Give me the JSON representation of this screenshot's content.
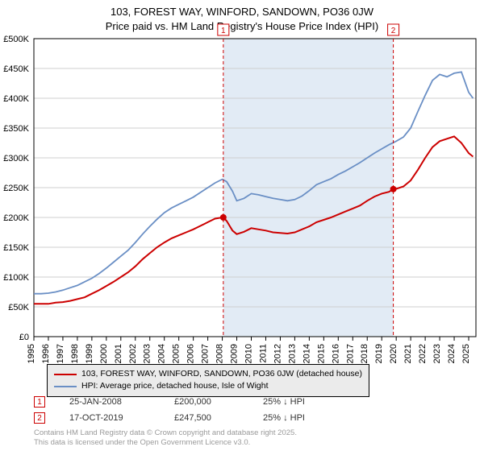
{
  "title_line1": "103, FOREST WAY, WINFORD, SANDOWN, PO36 0JW",
  "title_line2": "Price paid vs. HM Land Registry's House Price Index (HPI)",
  "chart": {
    "type": "line",
    "background_color": "#ffffff",
    "plot_border_color": "#000000",
    "grid_color": "#cfcfcf",
    "shade_color": "#e2ebf5",
    "shade_xstart": 2008.07,
    "shade_xend": 2019.8,
    "xlim": [
      1995,
      2025.5
    ],
    "ylim": [
      0,
      500
    ],
    "yticks": [
      0,
      50,
      100,
      150,
      200,
      250,
      300,
      350,
      400,
      450,
      500
    ],
    "ytick_labels": [
      "£0",
      "£50K",
      "£100K",
      "£150K",
      "£200K",
      "£250K",
      "£300K",
      "£350K",
      "£400K",
      "£450K",
      "£500K"
    ],
    "xticks": [
      1995,
      1996,
      1997,
      1998,
      1999,
      2000,
      2001,
      2002,
      2003,
      2004,
      2005,
      2006,
      2007,
      2008,
      2009,
      2010,
      2011,
      2012,
      2013,
      2014,
      2015,
      2016,
      2017,
      2018,
      2019,
      2020,
      2021,
      2022,
      2023,
      2024,
      2025
    ],
    "label_fontsize": 11,
    "axis_color": "#000000",
    "series": [
      {
        "name": "subject",
        "color": "#cc0000",
        "line_width": 2,
        "x": [
          1995,
          1995.5,
          1996,
          1996.5,
          1997,
          1997.5,
          1998,
          1998.5,
          1999,
          1999.5,
          2000,
          2000.5,
          2001,
          2001.5,
          2002,
          2002.5,
          2003,
          2003.5,
          2004,
          2004.5,
          2005,
          2005.5,
          2006,
          2006.5,
          2007,
          2007.5,
          2008,
          2008.07,
          2008.3,
          2008.7,
          2009,
          2009.5,
          2010,
          2010.5,
          2011,
          2011.5,
          2012,
          2012.5,
          2013,
          2013.5,
          2014,
          2014.5,
          2015,
          2015.5,
          2016,
          2016.5,
          2017,
          2017.5,
          2018,
          2018.5,
          2019,
          2019.5,
          2019.8,
          2020,
          2020.5,
          2021,
          2021.5,
          2022,
          2022.5,
          2023,
          2023.5,
          2024,
          2024.5,
          2025,
          2025.3
        ],
        "y": [
          55,
          55,
          55,
          57,
          58,
          60,
          63,
          66,
          72,
          78,
          85,
          92,
          100,
          108,
          118,
          130,
          140,
          150,
          158,
          165,
          170,
          175,
          180,
          186,
          192,
          198,
          200,
          200,
          194,
          178,
          172,
          176,
          182,
          180,
          178,
          175,
          174,
          173,
          175,
          180,
          185,
          192,
          196,
          200,
          205,
          210,
          215,
          220,
          228,
          235,
          240,
          243,
          247.5,
          248,
          252,
          262,
          280,
          300,
          318,
          328,
          332,
          336,
          325,
          308,
          302
        ]
      },
      {
        "name": "hpi",
        "color": "#6a8fc5",
        "line_width": 1.8,
        "x": [
          1995,
          1995.5,
          1996,
          1996.5,
          1997,
          1997.5,
          1998,
          1998.5,
          1999,
          1999.5,
          2000,
          2000.5,
          2001,
          2001.5,
          2002,
          2002.5,
          2003,
          2003.5,
          2004,
          2004.5,
          2005,
          2005.5,
          2006,
          2006.5,
          2007,
          2007.5,
          2008,
          2008.3,
          2008.7,
          2009,
          2009.5,
          2010,
          2010.5,
          2011,
          2011.5,
          2012,
          2012.5,
          2013,
          2013.5,
          2014,
          2014.5,
          2015,
          2015.5,
          2016,
          2016.5,
          2017,
          2017.5,
          2018,
          2018.5,
          2019,
          2019.5,
          2020,
          2020.5,
          2021,
          2021.5,
          2022,
          2022.5,
          2023,
          2023.5,
          2024,
          2024.5,
          2025,
          2025.3
        ],
        "y": [
          72,
          72,
          73,
          75,
          78,
          82,
          86,
          92,
          98,
          106,
          115,
          125,
          135,
          145,
          158,
          172,
          185,
          197,
          208,
          216,
          222,
          228,
          234,
          242,
          250,
          258,
          264,
          260,
          244,
          228,
          232,
          240,
          238,
          235,
          232,
          230,
          228,
          230,
          236,
          245,
          255,
          260,
          265,
          272,
          278,
          285,
          292,
          300,
          308,
          315,
          322,
          328,
          335,
          350,
          378,
          405,
          430,
          440,
          436,
          442,
          444,
          410,
          400
        ]
      }
    ],
    "sale_markers": [
      {
        "label": "1",
        "x": 2008.07,
        "y": 200
      },
      {
        "label": "2",
        "x": 2019.8,
        "y": 247.5
      }
    ],
    "marker_line_color": "#cc0000",
    "marker_dot_color": "#cc0000",
    "marker_dot_radius": 4
  },
  "legend": {
    "items": [
      {
        "color": "#cc0000",
        "label": "103, FOREST WAY, WINFORD, SANDOWN, PO36 0JW (detached house)"
      },
      {
        "color": "#6a8fc5",
        "label": "HPI: Average price, detached house, Isle of Wight"
      }
    ]
  },
  "sales": [
    {
      "badge": "1",
      "date": "25-JAN-2008",
      "price": "£200,000",
      "diff": "25% ↓ HPI"
    },
    {
      "badge": "2",
      "date": "17-OCT-2019",
      "price": "£247,500",
      "diff": "25% ↓ HPI"
    }
  ],
  "footer_line1": "Contains HM Land Registry data © Crown copyright and database right 2025.",
  "footer_line2": "This data is licensed under the Open Government Licence v3.0."
}
